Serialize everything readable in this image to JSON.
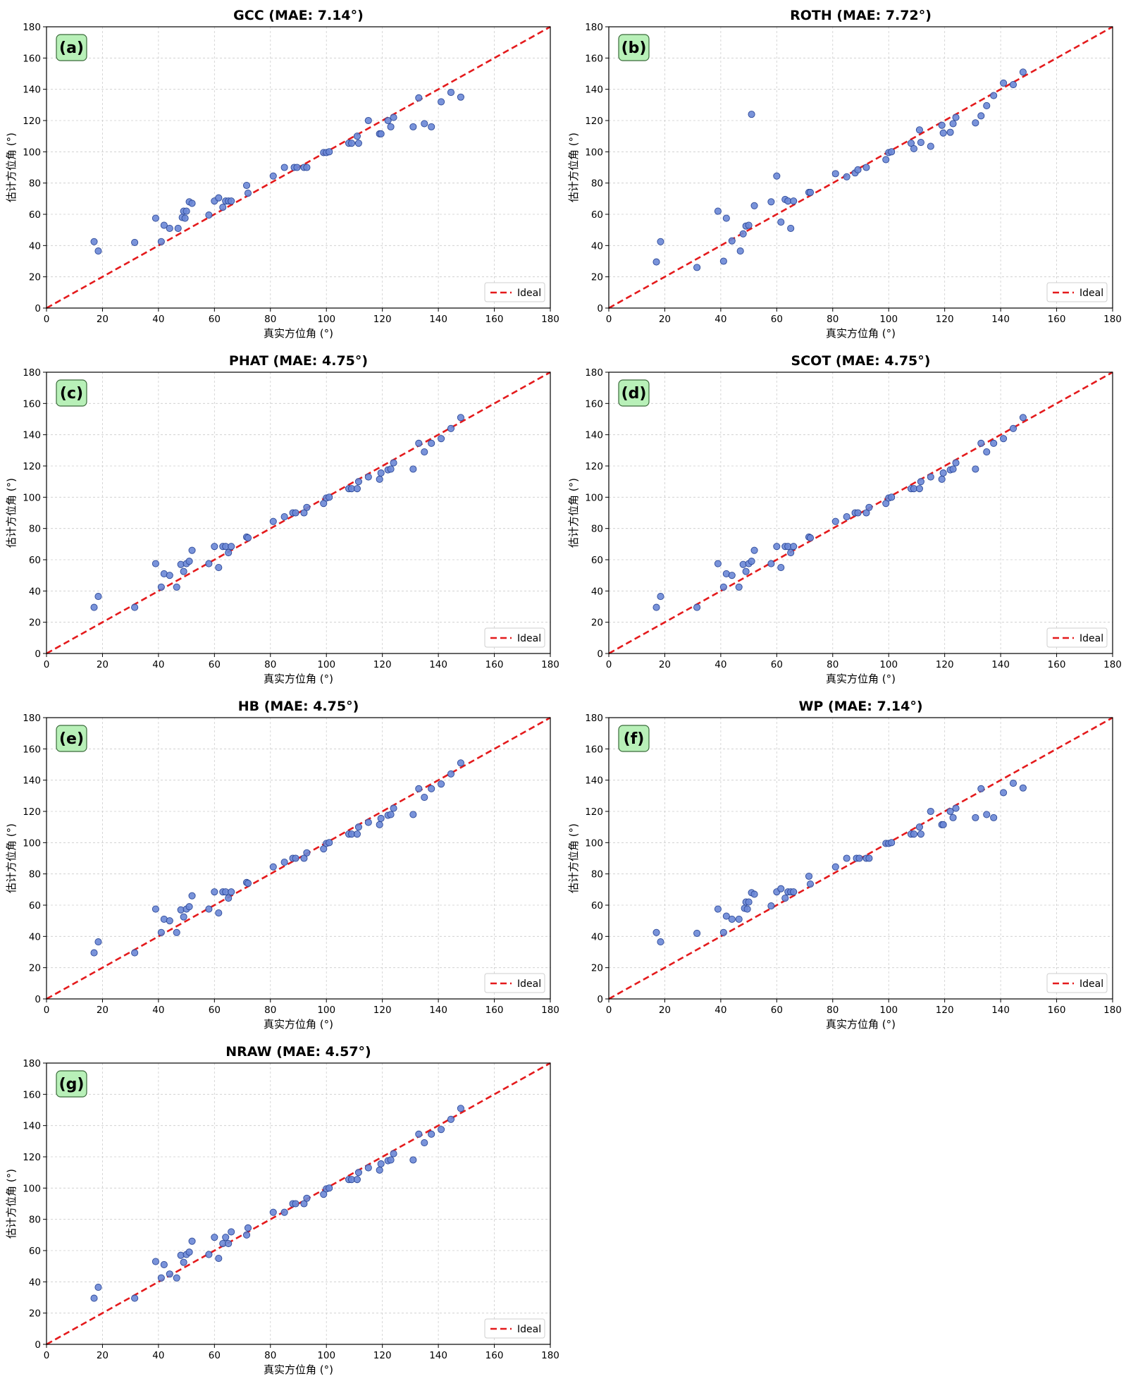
{
  "figure": {
    "xlabel": "真实方位角 (°)",
    "ylabel": "估计方位角 (°)",
    "xlim": [
      0,
      180
    ],
    "ylim": [
      0,
      180
    ],
    "ticks": [
      0,
      20,
      40,
      60,
      80,
      100,
      120,
      140,
      160,
      180
    ],
    "grid": true,
    "legend_label": "Ideal",
    "legend_position": "lower-right",
    "colors": {
      "point_fill": "#6a87d6",
      "point_edge": "#2e4a99",
      "ideal_line": "#e41a1c",
      "badge_fill": "#b8f0b8",
      "badge_edge": "#3a6b3a",
      "grid": "#cccccc"
    }
  },
  "chart_data": [
    {
      "type": "scatter",
      "badge": "(a)",
      "title": "GCC (MAE: 7.14°)",
      "x": [
        17,
        18.5,
        31.5,
        39,
        41,
        42,
        44,
        47,
        48.5,
        49,
        49.5,
        50,
        51,
        52,
        58,
        60,
        61.5,
        63,
        64,
        65,
        66,
        71.5,
        72,
        81,
        85,
        88.5,
        89.5,
        92,
        93,
        99,
        100,
        101,
        108,
        109,
        111,
        111.5,
        115,
        119,
        119.5,
        122,
        123,
        124,
        131,
        133,
        135,
        137.5,
        141,
        144.5,
        148
      ],
      "y": [
        42.5,
        36.5,
        42,
        57.5,
        42.5,
        53,
        51,
        51,
        58,
        62,
        57.5,
        62,
        68,
        67,
        59.5,
        68.5,
        70.5,
        64.5,
        68.5,
        68.5,
        68.5,
        78.5,
        73.5,
        84.5,
        90,
        90,
        90,
        90,
        90,
        99.5,
        99.5,
        100,
        105.5,
        105.5,
        110,
        105.5,
        120,
        111.5,
        111.5,
        120,
        116,
        122,
        116,
        134.5,
        118,
        116,
        132,
        138,
        135
      ]
    },
    {
      "type": "scatter",
      "badge": "(b)",
      "title": "ROTH (MAE: 7.72°)",
      "x": [
        17,
        18.5,
        31.5,
        39,
        41,
        42,
        44,
        47,
        48,
        49,
        50,
        51,
        52,
        58,
        60,
        61.5,
        63,
        64,
        65,
        66,
        71.5,
        72,
        81,
        85,
        88,
        89,
        92,
        99,
        100,
        101,
        108,
        109,
        111,
        111.5,
        115,
        119,
        119.5,
        122,
        123,
        124,
        131,
        133,
        135,
        137.5,
        141,
        144.5,
        148
      ],
      "y": [
        29.5,
        42.5,
        26,
        62,
        30,
        57.5,
        43,
        36.5,
        47.5,
        52.5,
        53,
        124,
        65.5,
        68,
        84.5,
        55,
        69.5,
        68.5,
        51,
        68.5,
        74,
        74,
        86,
        84,
        86.5,
        88.5,
        90,
        95,
        99.5,
        100,
        105.5,
        102,
        114,
        106,
        103.5,
        117,
        112,
        112.5,
        118,
        122,
        118.5,
        123,
        129.5,
        136,
        144,
        143,
        151
      ]
    },
    {
      "type": "scatter",
      "badge": "(c)",
      "title": "PHAT (MAE: 4.75°)",
      "x": [
        17,
        18.5,
        31.5,
        39,
        41,
        42,
        44,
        46.5,
        48,
        49,
        50,
        51,
        52,
        58,
        60,
        61.5,
        63,
        64,
        65,
        66,
        71.5,
        72,
        81,
        85,
        88,
        89,
        92,
        93,
        99,
        100,
        101,
        108,
        109,
        111,
        111.5,
        115,
        119,
        119.5,
        122,
        123,
        124,
        131,
        133,
        135,
        137.5,
        141,
        144.5,
        148
      ],
      "y": [
        29.5,
        36.5,
        29.5,
        57.5,
        42.5,
        51,
        50,
        42.5,
        57,
        52.5,
        57.5,
        59,
        66,
        57.5,
        68.5,
        55,
        68.5,
        68.5,
        64.5,
        68.5,
        74.5,
        74,
        84.5,
        87.5,
        90,
        90,
        90,
        93.5,
        96,
        99.5,
        100,
        105.5,
        105.5,
        105.5,
        110,
        113,
        111.5,
        115.5,
        117.5,
        118,
        122,
        118,
        134.5,
        129,
        134.5,
        137.5,
        144,
        151
      ]
    },
    {
      "type": "scatter",
      "badge": "(d)",
      "title": "SCOT (MAE: 4.75°)",
      "x": [
        17,
        18.5,
        31.5,
        39,
        41,
        42,
        44,
        46.5,
        48,
        49,
        50,
        51,
        52,
        58,
        60,
        61.5,
        63,
        64,
        65,
        66,
        71.5,
        72,
        81,
        85,
        88,
        89,
        92,
        93,
        99,
        100,
        101,
        108,
        109,
        111,
        111.5,
        115,
        119,
        119.5,
        122,
        123,
        124,
        131,
        133,
        135,
        137.5,
        141,
        144.5,
        148
      ],
      "y": [
        29.5,
        36.5,
        29.5,
        57.5,
        42.5,
        51,
        50,
        42.5,
        57,
        52.5,
        57.5,
        59,
        66,
        57.5,
        68.5,
        55,
        68.5,
        68.5,
        64.5,
        68.5,
        74.5,
        74,
        84.5,
        87.5,
        90,
        90,
        90,
        93.5,
        96,
        99.5,
        100,
        105.5,
        105.5,
        105.5,
        110,
        113,
        111.5,
        115.5,
        117.5,
        118,
        122,
        118,
        134.5,
        129,
        134.5,
        137.5,
        144,
        151
      ]
    },
    {
      "type": "scatter",
      "badge": "(e)",
      "title": "HB (MAE: 4.75°)",
      "x": [
        17,
        18.5,
        31.5,
        39,
        41,
        42,
        44,
        46.5,
        48,
        49,
        50,
        51,
        52,
        58,
        60,
        61.5,
        63,
        64,
        65,
        66,
        71.5,
        72,
        81,
        85,
        88,
        89,
        92,
        93,
        99,
        100,
        101,
        108,
        109,
        111,
        111.5,
        115,
        119,
        119.5,
        122,
        123,
        124,
        131,
        133,
        135,
        137.5,
        141,
        144.5,
        148
      ],
      "y": [
        29.5,
        36.5,
        29.5,
        57.5,
        42.5,
        51,
        50,
        42.5,
        57,
        52.5,
        57.5,
        59,
        66,
        57.5,
        68.5,
        55,
        68.5,
        68.5,
        64.5,
        68.5,
        74.5,
        74,
        84.5,
        87.5,
        90,
        90,
        90,
        93.5,
        96,
        99.5,
        100,
        105.5,
        105.5,
        105.5,
        110,
        113,
        111.5,
        115.5,
        117.5,
        118,
        122,
        118,
        134.5,
        129,
        134.5,
        137.5,
        144,
        151
      ]
    },
    {
      "type": "scatter",
      "badge": "(f)",
      "title": "WP (MAE: 7.14°)",
      "x": [
        17,
        18.5,
        31.5,
        39,
        41,
        42,
        44,
        46.5,
        48.5,
        49,
        49.5,
        50,
        51,
        52,
        58,
        60,
        61.5,
        63,
        64,
        65,
        66,
        71.5,
        72,
        81,
        85,
        88.5,
        89.5,
        92,
        93,
        99,
        100,
        101,
        108,
        109,
        111,
        111.5,
        115,
        119,
        119.5,
        122,
        123,
        124,
        131,
        133,
        135,
        137.5,
        141,
        144.5,
        148
      ],
      "y": [
        42.5,
        36.5,
        42,
        57.5,
        42.5,
        53,
        51,
        51,
        58,
        62,
        57.5,
        62,
        68,
        67,
        59.5,
        68.5,
        70.5,
        64.5,
        68.5,
        68.5,
        68.5,
        78.5,
        73.5,
        84.5,
        90,
        90,
        90,
        90,
        90,
        99.5,
        99.5,
        100,
        105.5,
        105.5,
        110,
        105.5,
        120,
        111.5,
        111.5,
        120,
        116,
        122,
        116,
        134.5,
        118,
        116,
        132,
        138,
        135
      ]
    },
    {
      "type": "scatter",
      "badge": "(g)",
      "title": "NRAW (MAE: 4.57°)",
      "x": [
        17,
        18.5,
        31.5,
        39,
        41,
        42,
        44,
        46.5,
        48,
        49,
        50,
        51,
        52,
        58,
        60,
        61.5,
        63,
        64,
        65,
        66,
        71.5,
        72,
        81,
        85,
        88,
        89,
        92,
        93,
        99,
        100,
        101,
        108,
        109,
        111,
        111.5,
        115,
        119,
        119.5,
        122,
        123,
        124,
        131,
        133,
        135,
        137.5,
        141,
        144.5,
        148
      ],
      "y": [
        29.5,
        36.5,
        29.5,
        53,
        42.5,
        51,
        45,
        42.5,
        57,
        52.5,
        57.5,
        59,
        66,
        57.5,
        68.5,
        55,
        64.5,
        68.5,
        64.5,
        72,
        70,
        74.5,
        84.5,
        84.5,
        90,
        90,
        90,
        93.5,
        96,
        99.5,
        100,
        105.5,
        105.5,
        105.5,
        110,
        113,
        111.5,
        115.5,
        117.5,
        118,
        122,
        118,
        134.5,
        129,
        134.5,
        137.5,
        144,
        151
      ]
    }
  ]
}
